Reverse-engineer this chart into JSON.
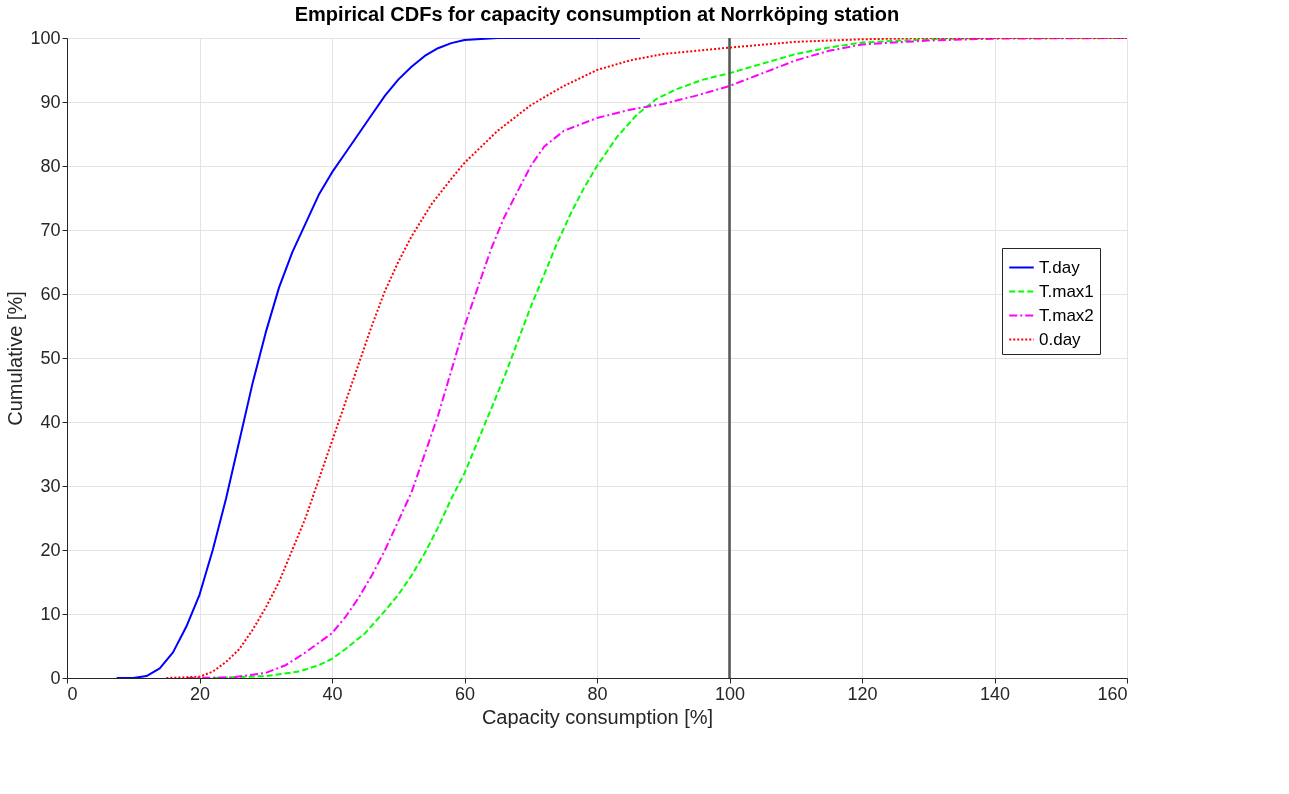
{
  "chart_data": {
    "type": "line",
    "title": "Empirical CDFs for capacity consumption at Norrköping station",
    "xlabel": "Capacity consumption [%]",
    "ylabel": "Cumulative [%]",
    "xlim": [
      0,
      160
    ],
    "xticks": [
      0,
      20,
      40,
      60,
      80,
      100,
      120,
      140,
      160
    ],
    "ylim": [
      0,
      100
    ],
    "yticks": [
      0,
      10,
      20,
      30,
      40,
      50,
      60,
      70,
      80,
      90,
      100
    ],
    "grid": true,
    "legend": "right",
    "marker": "none",
    "ref_lines": [
      {
        "axis": "x",
        "value": 100,
        "color": "#555555",
        "line_style": "solid"
      }
    ],
    "series": [
      {
        "name": "T.day",
        "color": "#0000ff",
        "line_style": "solid",
        "x": [
          7.5,
          10,
          12,
          14,
          16,
          18,
          20,
          22,
          24,
          26,
          28,
          30,
          32,
          34,
          36,
          38,
          40,
          42,
          44,
          46,
          48,
          50,
          52,
          54,
          56,
          58,
          60,
          65,
          86.5
        ],
        "values": [
          0,
          0,
          0.3,
          1.5,
          4,
          8,
          13,
          20,
          28,
          37,
          46,
          54,
          61,
          66.5,
          71,
          75.5,
          79,
          82,
          85,
          88,
          91,
          93.5,
          95.5,
          97.2,
          98.4,
          99.2,
          99.7,
          100,
          100
        ]
      },
      {
        "name": "T.max1",
        "color": "#00ff00",
        "line_style": "dashed",
        "x": [
          22,
          30,
          35,
          38,
          40,
          42,
          45,
          48,
          50,
          52,
          54,
          56,
          58,
          60,
          62,
          64,
          66,
          68,
          70,
          72,
          74,
          76,
          78,
          80,
          83,
          86,
          89,
          92,
          96,
          100,
          105,
          110,
          115,
          120,
          130,
          140,
          160
        ],
        "values": [
          0,
          0.3,
          1,
          2,
          3,
          4.5,
          7,
          10.5,
          13,
          16,
          19.5,
          23.5,
          28,
          32,
          37,
          42,
          47,
          52.5,
          58,
          63,
          68,
          72.5,
          76.5,
          80,
          84.5,
          88,
          90.5,
          92,
          93.5,
          94.5,
          96,
          97.5,
          98.5,
          99.3,
          99.8,
          100,
          100
        ]
      },
      {
        "name": "T.max2",
        "color": "#ff00ff",
        "line_style": "dashdot",
        "x": [
          18,
          25,
          30,
          33,
          36,
          40,
          42,
          44,
          46,
          48,
          50,
          52,
          54,
          56,
          58,
          60,
          62,
          64,
          66,
          68,
          70,
          72,
          75,
          80,
          85,
          90,
          95,
          100,
          105,
          110,
          115,
          120,
          130,
          140,
          160
        ],
        "values": [
          0,
          0.1,
          0.8,
          2,
          4,
          7,
          9.5,
          12.5,
          16,
          20,
          24.5,
          29,
          35,
          41,
          48,
          55,
          61,
          67,
          72,
          76,
          80,
          83,
          85.5,
          87.5,
          88.8,
          89.7,
          91,
          92.5,
          94.5,
          96.5,
          98,
          99,
          99.6,
          99.9,
          100
        ]
      },
      {
        "name": "0.day",
        "color": "#ff0000",
        "line_style": "dotted",
        "x": [
          15,
          20,
          22,
          24,
          26,
          28,
          30,
          32,
          34,
          36,
          38,
          40,
          42,
          44,
          46,
          48,
          50,
          52,
          55,
          58,
          60,
          65,
          70,
          75,
          80,
          85,
          90,
          100,
          110,
          120,
          130,
          160
        ],
        "values": [
          0,
          0.2,
          1,
          2.5,
          4.5,
          7.5,
          11,
          15,
          20,
          25,
          31,
          37,
          43,
          49,
          55,
          60.5,
          65,
          69,
          74,
          78,
          80.5,
          85.5,
          89.5,
          92.5,
          95,
          96.5,
          97.5,
          98.5,
          99.4,
          99.8,
          100,
          100
        ]
      }
    ]
  }
}
